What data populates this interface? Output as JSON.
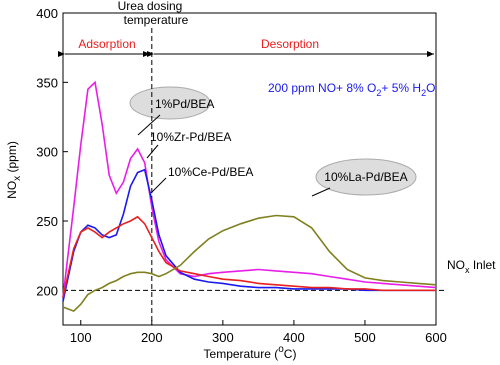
{
  "chart_data": {
    "type": "line",
    "x_label": [
      "Temperature (",
      "o",
      "C)"
    ],
    "y_label": [
      "NO",
      "x",
      " (ppm)"
    ],
    "x": [
      75,
      90,
      100,
      110,
      120,
      130,
      140,
      150,
      160,
      170,
      180,
      190,
      200,
      210,
      220,
      240,
      260,
      280,
      300,
      325,
      350,
      375,
      400,
      425,
      450,
      475,
      500,
      525,
      550,
      575,
      600
    ],
    "series": [
      {
        "name": "1%Pd/BEA",
        "color": "#e81ee8",
        "values": [
          195,
          260,
          305,
          345,
          350,
          320,
          283,
          270,
          278,
          295,
          302,
          292,
          260,
          235,
          222,
          212,
          210,
          212,
          213,
          214,
          215,
          214,
          213,
          212,
          210,
          208,
          206,
          205,
          204,
          203,
          202
        ]
      },
      {
        "name": "10%Zr-Pd/BEA",
        "color": "#1a1af0",
        "values": [
          192,
          228,
          242,
          247,
          245,
          240,
          238,
          240,
          255,
          275,
          285,
          287,
          265,
          240,
          225,
          213,
          208,
          206,
          205,
          203,
          202,
          202,
          201,
          201,
          201,
          201,
          200,
          200,
          200,
          200,
          200
        ]
      },
      {
        "name": "10%Ce-Pd/BEA",
        "color": "#e82020",
        "values": [
          195,
          230,
          242,
          245,
          242,
          238,
          242,
          245,
          248,
          250,
          253,
          248,
          238,
          228,
          220,
          214,
          212,
          210,
          208,
          207,
          205,
          204,
          203,
          202,
          202,
          201,
          201,
          200,
          200,
          200,
          200
        ]
      },
      {
        "name": "10%La-Pd/BEA",
        "color": "#808020",
        "values": [
          188,
          185,
          190,
          197,
          200,
          202,
          205,
          207,
          210,
          212,
          213,
          213,
          212,
          210,
          212,
          218,
          228,
          237,
          243,
          248,
          252,
          254,
          253,
          245,
          228,
          215,
          209,
          207,
          206,
          205,
          204
        ]
      }
    ],
    "xlim": [
      75,
      600
    ],
    "xticks": [
      100,
      200,
      300,
      400,
      500,
      600
    ],
    "ylim": [
      175,
      400
    ],
    "yticks": [
      200,
      250,
      300,
      350,
      400
    ],
    "dosing_temperature": 200,
    "inlet_level": 200,
    "dosing_label": [
      "Urea dosing",
      "temperature"
    ],
    "adsorption_label": "Adsorption",
    "desorption_label": "Desorption",
    "condition_label": [
      "200 ppm NO+ 8% O",
      "2",
      "+ 5% H",
      "2",
      "O"
    ],
    "inlet_label": [
      "NO",
      "x",
      " Inlet"
    ]
  }
}
